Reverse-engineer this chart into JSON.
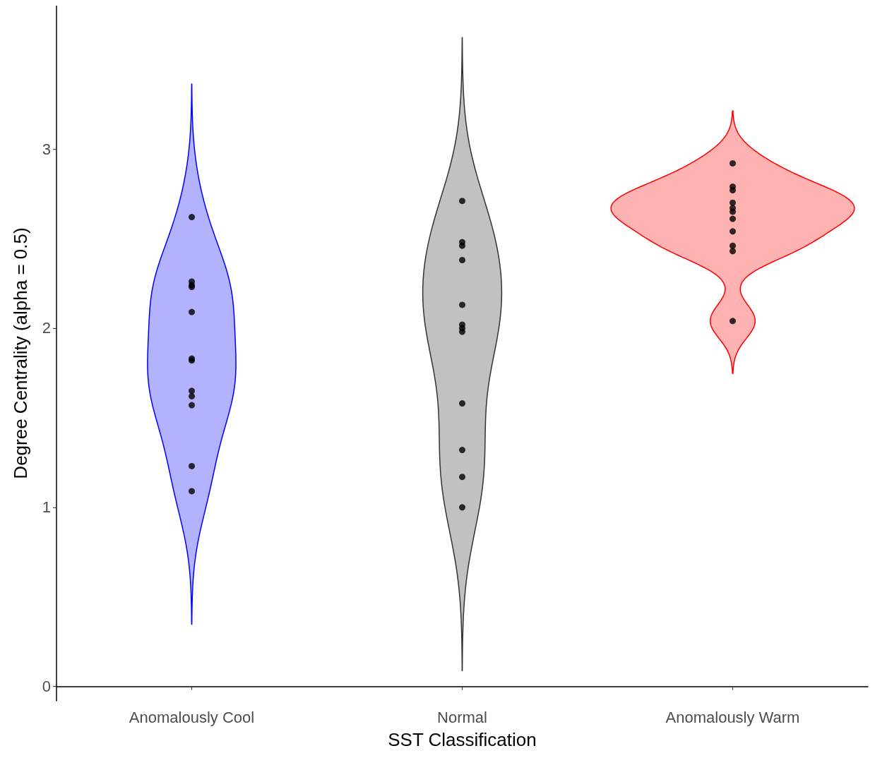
{
  "chart_data": {
    "type": "scatter",
    "xlabel": "SST Classification",
    "ylabel": "Degree Centrality (alpha = 0.5)",
    "categories": [
      "Anomalously Cool",
      "Normal",
      "Anomalously Warm"
    ],
    "colors": [
      "#0000ff",
      "#333333",
      "#ff0000"
    ],
    "ylim": [
      -0.08,
      3.8
    ],
    "yticks": [
      0,
      1,
      2,
      3
    ],
    "grid": false,
    "marker": "circle",
    "series": [
      {
        "color": "#000000",
        "x": [
          "Anomalously Cool",
          "Anomalously Cool",
          "Anomalously Cool",
          "Anomalously Cool",
          "Anomalously Cool",
          "Anomalously Cool",
          "Anomalously Cool",
          "Anomalously Cool",
          "Anomalously Cool",
          "Anomalously Cool",
          "Anomalously Cool",
          "Anomalously Cool"
        ],
        "values": [
          2.62,
          2.26,
          2.24,
          2.23,
          2.09,
          1.83,
          1.82,
          1.65,
          1.62,
          1.57,
          1.23,
          1.09
        ]
      },
      {
        "color": "#000000",
        "x": [
          "Normal",
          "Normal",
          "Normal",
          "Normal",
          "Normal",
          "Normal",
          "Normal",
          "Normal",
          "Normal",
          "Normal",
          "Normal",
          "Normal"
        ],
        "values": [
          2.71,
          2.48,
          2.46,
          2.38,
          2.13,
          2.02,
          2.0,
          1.98,
          1.58,
          1.32,
          1.17,
          1.0
        ]
      },
      {
        "color": "#000000",
        "x": [
          "Anomalously Warm",
          "Anomalously Warm",
          "Anomalously Warm",
          "Anomalously Warm",
          "Anomalously Warm",
          "Anomalously Warm",
          "Anomalously Warm",
          "Anomalously Warm",
          "Anomalously Warm",
          "Anomalously Warm",
          "Anomalously Warm"
        ],
        "values": [
          2.92,
          2.79,
          2.77,
          2.7,
          2.67,
          2.65,
          2.61,
          2.54,
          2.46,
          2.43,
          2.04
        ]
      }
    ]
  }
}
